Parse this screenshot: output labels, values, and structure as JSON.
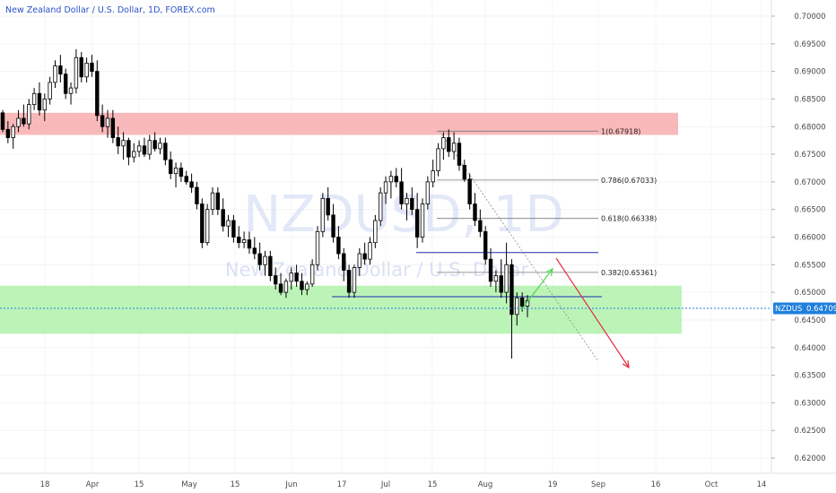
{
  "header": {
    "title": "New Zealand Dollar / U.S. Dollar, 1D, FOREX.com"
  },
  "watermark": {
    "symbol": "NZDUSD, 1D",
    "name": "New Zealand Dollar / U.S. Dollar"
  },
  "price_tag": {
    "symbol": "NZDUSD",
    "price": "0.64709"
  },
  "colors": {
    "up": "#2d2d2d",
    "down": "#000000",
    "resistance_zone": "#f7a1a3",
    "support_zone": "#a5f0a0",
    "fib_line": "#787878",
    "blue_line": "#1e2bb0",
    "green_arrow": "#4cd94c",
    "red_arrow": "#e8283c",
    "price_line": "#1f7fdc",
    "axis_text": "#4a4a4a"
  },
  "chart_data": {
    "type": "candlestick",
    "y_axis": {
      "range": [
        0.6165,
        0.7025
      ],
      "ticks": [
        "0.70000",
        "0.69500",
        "0.69000",
        "0.68500",
        "0.68000",
        "0.67500",
        "0.67000",
        "0.66500",
        "0.66000",
        "0.65500",
        "0.65000",
        "0.64500",
        "0.64000",
        "0.63500",
        "0.63000",
        "0.62500",
        "0.62000"
      ]
    },
    "x_axis": {
      "ticks": [
        "18",
        "Apr",
        "15",
        "May",
        "15",
        "Jun",
        "17",
        "Jul",
        "15",
        "Aug",
        "19",
        "Sep",
        "16",
        "Oct",
        "14"
      ]
    },
    "candles": [
      [
        0.6825,
        0.683,
        0.679,
        0.6795
      ],
      [
        0.6795,
        0.681,
        0.677,
        0.678
      ],
      [
        0.678,
        0.6805,
        0.676,
        0.68
      ],
      [
        0.68,
        0.683,
        0.679,
        0.6815
      ],
      [
        0.6815,
        0.684,
        0.68,
        0.6805
      ],
      [
        0.6805,
        0.685,
        0.6795,
        0.684
      ],
      [
        0.684,
        0.687,
        0.683,
        0.686
      ],
      [
        0.686,
        0.688,
        0.682,
        0.683
      ],
      [
        0.683,
        0.686,
        0.681,
        0.685
      ],
      [
        0.685,
        0.689,
        0.684,
        0.688
      ],
      [
        0.688,
        0.692,
        0.687,
        0.691
      ],
      [
        0.691,
        0.693,
        0.688,
        0.6895
      ],
      [
        0.6895,
        0.6905,
        0.685,
        0.686
      ],
      [
        0.686,
        0.688,
        0.684,
        0.687
      ],
      [
        0.687,
        0.694,
        0.686,
        0.6925
      ],
      [
        0.6925,
        0.6935,
        0.688,
        0.689
      ],
      [
        0.689,
        0.6925,
        0.688,
        0.6915
      ],
      [
        0.6915,
        0.693,
        0.689,
        0.69
      ],
      [
        0.69,
        0.692,
        0.681,
        0.682
      ],
      [
        0.682,
        0.684,
        0.679,
        0.68
      ],
      [
        0.68,
        0.683,
        0.678,
        0.6815
      ],
      [
        0.6815,
        0.683,
        0.677,
        0.678
      ],
      [
        0.678,
        0.68,
        0.675,
        0.6765
      ],
      [
        0.6765,
        0.679,
        0.674,
        0.6775
      ],
      [
        0.6775,
        0.678,
        0.673,
        0.6745
      ],
      [
        0.6745,
        0.677,
        0.6735,
        0.6755
      ],
      [
        0.6755,
        0.6775,
        0.6745,
        0.6765
      ],
      [
        0.6765,
        0.678,
        0.6745,
        0.675
      ],
      [
        0.675,
        0.6785,
        0.674,
        0.6775
      ],
      [
        0.6775,
        0.679,
        0.6755,
        0.676
      ],
      [
        0.676,
        0.678,
        0.675,
        0.677
      ],
      [
        0.677,
        0.678,
        0.673,
        0.674
      ],
      [
        0.674,
        0.6755,
        0.6705,
        0.6715
      ],
      [
        0.6715,
        0.6735,
        0.669,
        0.6725
      ],
      [
        0.6725,
        0.6735,
        0.67,
        0.671
      ],
      [
        0.671,
        0.672,
        0.6695,
        0.67
      ],
      [
        0.67,
        0.6715,
        0.668,
        0.669
      ],
      [
        0.669,
        0.67,
        0.665,
        0.666
      ],
      [
        0.666,
        0.667,
        0.658,
        0.659
      ],
      [
        0.659,
        0.666,
        0.6585,
        0.665
      ],
      [
        0.665,
        0.669,
        0.664,
        0.668
      ],
      [
        0.668,
        0.669,
        0.664,
        0.665
      ],
      [
        0.665,
        0.667,
        0.661,
        0.662
      ],
      [
        0.662,
        0.664,
        0.66,
        0.663
      ],
      [
        0.663,
        0.664,
        0.659,
        0.66
      ],
      [
        0.66,
        0.662,
        0.658,
        0.659
      ],
      [
        0.659,
        0.661,
        0.658,
        0.6595
      ],
      [
        0.6595,
        0.661,
        0.657,
        0.658
      ],
      [
        0.658,
        0.66,
        0.656,
        0.657
      ],
      [
        0.657,
        0.659,
        0.654,
        0.655
      ],
      [
        0.655,
        0.6575,
        0.653,
        0.6565
      ],
      [
        0.6565,
        0.6575,
        0.652,
        0.653
      ],
      [
        0.653,
        0.6545,
        0.6505,
        0.6515
      ],
      [
        0.6515,
        0.6535,
        0.6495,
        0.65
      ],
      [
        0.65,
        0.6525,
        0.649,
        0.652
      ],
      [
        0.652,
        0.6545,
        0.6505,
        0.6535
      ],
      [
        0.6535,
        0.655,
        0.651,
        0.652
      ],
      [
        0.652,
        0.6535,
        0.6495,
        0.6505
      ],
      [
        0.6505,
        0.652,
        0.6495,
        0.6515
      ],
      [
        0.6515,
        0.656,
        0.651,
        0.655
      ],
      [
        0.655,
        0.662,
        0.654,
        0.661
      ],
      [
        0.661,
        0.668,
        0.66,
        0.667
      ],
      [
        0.667,
        0.669,
        0.663,
        0.664
      ],
      [
        0.664,
        0.666,
        0.659,
        0.66
      ],
      [
        0.66,
        0.662,
        0.656,
        0.657
      ],
      [
        0.657,
        0.658,
        0.652,
        0.654
      ],
      [
        0.654,
        0.655,
        0.649,
        0.65
      ],
      [
        0.65,
        0.655,
        0.649,
        0.6545
      ],
      [
        0.6545,
        0.658,
        0.653,
        0.657
      ],
      [
        0.657,
        0.659,
        0.655,
        0.656
      ],
      [
        0.656,
        0.66,
        0.655,
        0.659
      ],
      [
        0.659,
        0.664,
        0.658,
        0.663
      ],
      [
        0.663,
        0.669,
        0.662,
        0.668
      ],
      [
        0.668,
        0.671,
        0.666,
        0.67
      ],
      [
        0.67,
        0.672,
        0.667,
        0.671
      ],
      [
        0.671,
        0.6725,
        0.669,
        0.67
      ],
      [
        0.67,
        0.6725,
        0.665,
        0.666
      ],
      [
        0.666,
        0.668,
        0.663,
        0.667
      ],
      [
        0.667,
        0.669,
        0.664,
        0.665
      ],
      [
        0.665,
        0.668,
        0.658,
        0.66
      ],
      [
        0.66,
        0.667,
        0.659,
        0.666
      ],
      [
        0.666,
        0.671,
        0.665,
        0.67
      ],
      [
        0.67,
        0.674,
        0.669,
        0.672
      ],
      [
        0.672,
        0.677,
        0.671,
        0.676
      ],
      [
        0.676,
        0.679,
        0.674,
        0.678
      ],
      [
        0.678,
        0.6795,
        0.6745,
        0.6755
      ],
      [
        0.6755,
        0.679,
        0.674,
        0.677
      ],
      [
        0.677,
        0.678,
        0.672,
        0.673
      ],
      [
        0.673,
        0.674,
        0.67,
        0.6705
      ],
      [
        0.6705,
        0.6715,
        0.665,
        0.666
      ],
      [
        0.666,
        0.668,
        0.662,
        0.663
      ],
      [
        0.663,
        0.665,
        0.66,
        0.661
      ],
      [
        0.661,
        0.662,
        0.655,
        0.656
      ],
      [
        0.656,
        0.658,
        0.651,
        0.652
      ],
      [
        0.652,
        0.654,
        0.65,
        0.653
      ],
      [
        0.653,
        0.656,
        0.649,
        0.65
      ],
      [
        0.65,
        0.659,
        0.648,
        0.655
      ],
      [
        0.655,
        0.656,
        0.638,
        0.646
      ],
      [
        0.646,
        0.65,
        0.644,
        0.649
      ],
      [
        0.649,
        0.65,
        0.6465,
        0.6475
      ],
      [
        0.6475,
        0.6495,
        0.6455,
        0.6485
      ]
    ],
    "zones": [
      {
        "name": "resistance",
        "top": 0.6825,
        "bottom": 0.6785
      },
      {
        "name": "support",
        "top": 0.6512,
        "bottom": 0.6425
      }
    ],
    "fibonacci": [
      {
        "label": "1(0.67918)",
        "value": 0.67918
      },
      {
        "label": "0.786(0.67033)",
        "value": 0.67033
      },
      {
        "label": "0.618(0.66338)",
        "value": 0.66338
      },
      {
        "label": "0.382(0.65361)",
        "value": 0.65361
      }
    ],
    "horizontal_levels": [
      0.6572,
      0.6492
    ],
    "current_price": 0.64709
  }
}
